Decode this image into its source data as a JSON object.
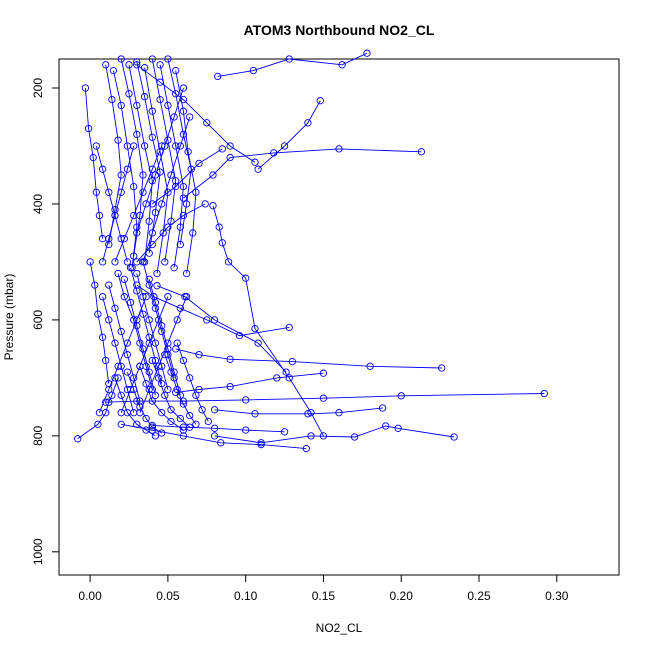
{
  "chart_data": {
    "type": "line",
    "title": "ATOM3 Northbound NO2_CL",
    "xlabel": "NO2_CL",
    "ylabel": "Pressure (mbar)",
    "xlim": [
      -0.02,
      0.34
    ],
    "ylim": [
      1040,
      150
    ],
    "y_reversed": true,
    "x_ticks": [
      "0.00",
      "0.05",
      "0.10",
      "0.15",
      "0.20",
      "0.25",
      "0.30"
    ],
    "x_tick_values": [
      0.0,
      0.05,
      0.1,
      0.15,
      0.2,
      0.25,
      0.3
    ],
    "y_ticks": [
      "200",
      "400",
      "600",
      "800",
      "1000"
    ],
    "y_tick_values": [
      200,
      400,
      600,
      800,
      1000
    ],
    "series_color": "#0000ff",
    "grid": false,
    "legend": "none",
    "series": [
      {
        "x": [
          0.082,
          0.105,
          0.128,
          0.162,
          0.178
        ],
        "y": [
          180,
          170,
          150,
          160,
          140
        ]
      },
      {
        "x": [
          0.148,
          0.14,
          0.125,
          0.108
        ],
        "y": [
          222,
          260,
          300,
          340
        ]
      },
      {
        "x": [
          0.213,
          0.16,
          0.118,
          0.09,
          0.079,
          0.06
        ],
        "y": [
          310,
          305,
          312,
          320,
          350,
          390
        ]
      },
      {
        "x": [
          0.106,
          0.09,
          0.075,
          0.06,
          0.045,
          0.03
        ],
        "y": [
          328,
          300,
          260,
          220,
          190,
          160
        ]
      },
      {
        "x": [
          0.079,
          0.083,
          0.085,
          0.089,
          0.1,
          0.106,
          0.128,
          0.142,
          0.15
        ],
        "y": [
          403,
          440,
          467,
          500,
          528,
          615,
          700,
          760,
          800
        ]
      },
      {
        "x": [
          0.085,
          0.07,
          0.055,
          0.04
        ],
        "y": [
          305,
          330,
          370,
          400
        ]
      },
      {
        "x": [
          0.074,
          0.06,
          0.05,
          0.04,
          0.03
        ],
        "y": [
          400,
          420,
          440,
          470,
          500
        ]
      },
      {
        "x": [
          0.128,
          0.096,
          0.075,
          0.058,
          0.041,
          0.03
        ],
        "y": [
          613,
          627,
          600,
          580,
          560,
          540
        ]
      },
      {
        "x": [
          0.226,
          0.18,
          0.13,
          0.09,
          0.07,
          0.055
        ],
        "y": [
          683,
          680,
          672,
          668,
          660,
          650
        ]
      },
      {
        "x": [
          0.15,
          0.12,
          0.09,
          0.07,
          0.055
        ],
        "y": [
          692,
          700,
          715,
          720,
          725
        ]
      },
      {
        "x": [
          0.292,
          0.2,
          0.15,
          0.1,
          0.06,
          0.03,
          0.01
        ],
        "y": [
          727,
          731,
          735,
          738,
          740,
          740,
          742
        ]
      },
      {
        "x": [
          0.188,
          0.16,
          0.14,
          0.106,
          0.08
        ],
        "y": [
          752,
          760,
          762,
          762,
          755
        ]
      },
      {
        "x": [
          0.234,
          0.198,
          0.19,
          0.17,
          0.142,
          0.11,
          0.08
        ],
        "y": [
          802,
          787,
          783,
          802,
          800,
          812,
          800
        ]
      },
      {
        "x": [
          0.139,
          0.11,
          0.084,
          0.06,
          0.04,
          0.02
        ],
        "y": [
          822,
          815,
          812,
          800,
          790,
          780
        ]
      },
      {
        "x": [
          0.125,
          0.1,
          0.08,
          0.06,
          0.04
        ],
        "y": [
          793,
          790,
          787,
          785,
          782
        ]
      },
      {
        "x": [
          0.043,
          0.061,
          0.08,
          0.108,
          0.126
        ],
        "y": [
          541,
          560,
          600,
          640,
          690
        ]
      },
      {
        "x": [
          -0.008,
          0.005,
          0.01,
          0.012,
          0.014,
          0.018
        ],
        "y": [
          805,
          780,
          760,
          742,
          730,
          700
        ]
      },
      {
        "x": [
          -0.003,
          -0.001,
          0.002,
          0.004,
          0.006,
          0.008
        ],
        "y": [
          200,
          270,
          320,
          380,
          420,
          460
        ]
      },
      {
        "x": [
          0.0,
          0.003,
          0.005,
          0.008,
          0.01,
          0.012
        ],
        "y": [
          500,
          540,
          590,
          630,
          670,
          710
        ]
      },
      {
        "x": [
          0.01,
          0.014,
          0.018,
          0.02,
          0.016,
          0.012
        ],
        "y": [
          160,
          220,
          290,
          350,
          410,
          470
        ]
      },
      {
        "x": [
          0.015,
          0.02,
          0.024,
          0.028,
          0.03,
          0.027
        ],
        "y": [
          170,
          230,
          300,
          370,
          440,
          510
        ]
      },
      {
        "x": [
          0.02,
          0.025,
          0.03,
          0.034,
          0.032,
          0.028
        ],
        "y": [
          150,
          210,
          280,
          350,
          420,
          490
        ]
      },
      {
        "x": [
          0.025,
          0.03,
          0.035,
          0.04,
          0.038,
          0.035
        ],
        "y": [
          160,
          230,
          300,
          360,
          430,
          500
        ]
      },
      {
        "x": [
          0.03,
          0.035,
          0.04,
          0.045,
          0.042,
          0.038
        ],
        "y": [
          155,
          215,
          285,
          345,
          415,
          485
        ]
      },
      {
        "x": [
          0.035,
          0.04,
          0.045,
          0.05,
          0.047,
          0.043
        ],
        "y": [
          165,
          240,
          310,
          380,
          450,
          520
        ]
      },
      {
        "x": [
          0.04,
          0.045,
          0.05,
          0.055,
          0.052,
          0.048
        ],
        "y": [
          150,
          220,
          290,
          360,
          430,
          500
        ]
      },
      {
        "x": [
          0.045,
          0.05,
          0.055,
          0.06,
          0.058,
          0.054
        ],
        "y": [
          160,
          230,
          300,
          370,
          440,
          510
        ]
      },
      {
        "x": [
          0.05,
          0.055,
          0.06,
          0.065,
          0.062,
          0.058
        ],
        "y": [
          150,
          210,
          280,
          340,
          400,
          470
        ]
      },
      {
        "x": [
          0.055,
          0.06,
          0.063,
          0.068,
          0.066,
          0.062
        ],
        "y": [
          170,
          240,
          310,
          380,
          450,
          520
        ]
      },
      {
        "x": [
          0.018,
          0.022,
          0.028,
          0.032,
          0.036,
          0.04
        ],
        "y": [
          520,
          560,
          600,
          640,
          680,
          720
        ]
      },
      {
        "x": [
          0.022,
          0.026,
          0.03,
          0.034,
          0.038,
          0.042
        ],
        "y": [
          530,
          570,
          610,
          650,
          690,
          730
        ]
      },
      {
        "x": [
          0.026,
          0.03,
          0.034,
          0.038,
          0.042,
          0.046
        ],
        "y": [
          510,
          550,
          590,
          630,
          670,
          710
        ]
      },
      {
        "x": [
          0.03,
          0.034,
          0.038,
          0.042,
          0.046,
          0.05
        ],
        "y": [
          520,
          560,
          600,
          640,
          680,
          720
        ]
      },
      {
        "x": [
          0.034,
          0.038,
          0.042,
          0.046,
          0.05,
          0.054
        ],
        "y": [
          500,
          540,
          580,
          620,
          660,
          700
        ]
      },
      {
        "x": [
          0.038,
          0.042,
          0.046,
          0.05,
          0.054,
          0.058
        ],
        "y": [
          530,
          570,
          610,
          650,
          690,
          730
        ]
      },
      {
        "x": [
          0.012,
          0.016,
          0.02,
          0.024,
          0.028,
          0.032
        ],
        "y": [
          540,
          580,
          620,
          660,
          700,
          740
        ]
      },
      {
        "x": [
          0.008,
          0.012,
          0.016,
          0.02,
          0.024,
          0.028
        ],
        "y": [
          560,
          600,
          640,
          680,
          720,
          760
        ]
      },
      {
        "x": [
          0.016,
          0.02,
          0.024,
          0.03,
          0.036,
          0.042
        ],
        "y": [
          700,
          730,
          760,
          780,
          790,
          800
        ]
      },
      {
        "x": [
          0.024,
          0.028,
          0.032,
          0.036,
          0.04,
          0.046
        ],
        "y": [
          690,
          720,
          750,
          770,
          785,
          795
        ]
      },
      {
        "x": [
          0.032,
          0.036,
          0.04,
          0.046,
          0.052,
          0.06
        ],
        "y": [
          680,
          710,
          740,
          760,
          775,
          790
        ]
      },
      {
        "x": [
          0.04,
          0.044,
          0.048,
          0.052,
          0.058,
          0.064
        ],
        "y": [
          670,
          700,
          730,
          755,
          770,
          785
        ]
      },
      {
        "x": [
          0.048,
          0.052,
          0.056,
          0.06,
          0.064,
          0.068
        ],
        "y": [
          660,
          690,
          720,
          745,
          765,
          780
        ]
      },
      {
        "x": [
          0.056,
          0.06,
          0.064,
          0.068,
          0.072,
          0.076
        ],
        "y": [
          640,
          670,
          700,
          730,
          755,
          775
        ]
      },
      {
        "x": [
          0.004,
          0.008,
          0.012,
          0.016,
          0.02,
          0.024
        ],
        "y": [
          300,
          340,
          380,
          420,
          460,
          500
        ]
      },
      {
        "x": [
          0.028,
          0.024,
          0.02,
          0.016,
          0.012,
          0.008
        ],
        "y": [
          300,
          340,
          380,
          420,
          460,
          500
        ]
      },
      {
        "x": [
          0.046,
          0.04,
          0.034,
          0.028,
          0.022,
          0.016
        ],
        "y": [
          300,
          340,
          380,
          420,
          460,
          500
        ]
      },
      {
        "x": [
          0.06,
          0.054,
          0.048,
          0.042,
          0.036,
          0.03
        ],
        "y": [
          200,
          250,
          300,
          350,
          400,
          450
        ]
      },
      {
        "x": [
          0.064,
          0.058,
          0.052,
          0.046,
          0.04,
          0.034
        ],
        "y": [
          250,
          300,
          350,
          400,
          450,
          500
        ]
      },
      {
        "x": [
          0.036,
          0.03,
          0.024,
          0.018,
          0.012,
          0.006
        ],
        "y": [
          560,
          600,
          640,
          680,
          720,
          760
        ]
      },
      {
        "x": [
          0.05,
          0.044,
          0.038,
          0.032,
          0.026,
          0.02
        ],
        "y": [
          560,
          600,
          640,
          680,
          720,
          760
        ]
      },
      {
        "x": [
          0.062,
          0.056,
          0.05,
          0.044,
          0.038,
          0.032
        ],
        "y": [
          560,
          600,
          640,
          680,
          720,
          760
        ]
      }
    ]
  }
}
